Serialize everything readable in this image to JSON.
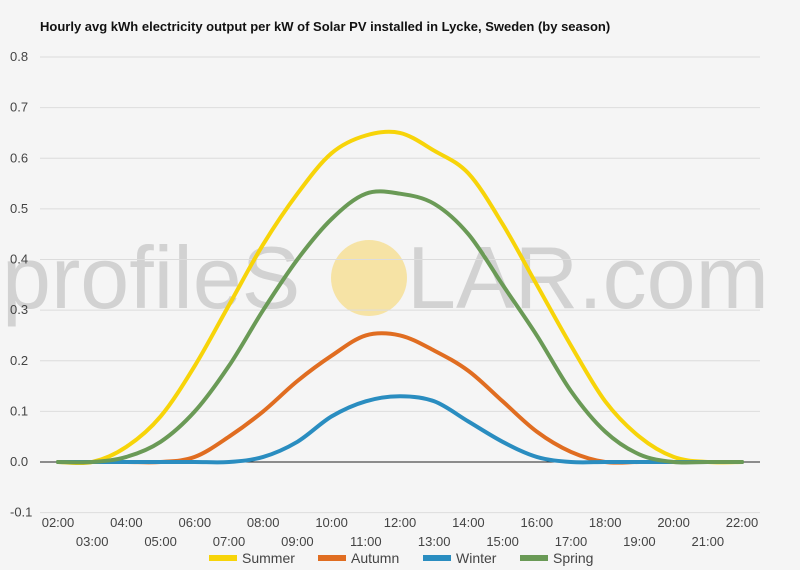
{
  "chart_data": {
    "type": "line",
    "title": "Hourly avg kWh electricity output per kW of Solar PV installed in Lycke, Sweden (by season)",
    "xlabel": "",
    "ylabel": "",
    "x": [
      "02:00",
      "03:00",
      "04:00",
      "05:00",
      "06:00",
      "07:00",
      "08:00",
      "09:00",
      "10:00",
      "11:00",
      "12:00",
      "13:00",
      "14:00",
      "15:00",
      "16:00",
      "17:00",
      "18:00",
      "19:00",
      "20:00",
      "21:00",
      "22:00"
    ],
    "ylim": [
      -0.1,
      0.8
    ],
    "yticks": [
      "0.8",
      "0.7",
      "0.6",
      "0.5",
      "0.4",
      "0.3",
      "0.2",
      "0.1",
      "0.0",
      "-0.1"
    ],
    "ytick_values": [
      0.8,
      0.7,
      0.6,
      0.5,
      0.4,
      0.3,
      0.2,
      0.1,
      0.0,
      -0.1
    ],
    "grid": true,
    "legend_position": "bottom",
    "series": [
      {
        "name": "Summer",
        "color": "#f7d409",
        "values": [
          0.0,
          0.0,
          0.03,
          0.09,
          0.19,
          0.31,
          0.43,
          0.53,
          0.61,
          0.645,
          0.65,
          0.615,
          0.57,
          0.47,
          0.35,
          0.23,
          0.12,
          0.05,
          0.01,
          0.0,
          0.0
        ]
      },
      {
        "name": "Autumn",
        "color": "#e06d21",
        "values": [
          0.0,
          0.0,
          0.0,
          0.0,
          0.01,
          0.05,
          0.1,
          0.16,
          0.21,
          0.25,
          0.25,
          0.22,
          0.18,
          0.12,
          0.06,
          0.02,
          0.0,
          0.0,
          0.0,
          0.0,
          0.0
        ]
      },
      {
        "name": "Winter",
        "color": "#2a8dc0",
        "values": [
          0.0,
          0.0,
          0.0,
          0.0,
          0.0,
          0.0,
          0.01,
          0.04,
          0.09,
          0.12,
          0.13,
          0.12,
          0.08,
          0.04,
          0.01,
          0.0,
          0.0,
          0.0,
          0.0,
          0.0,
          0.0
        ]
      },
      {
        "name": "Spring",
        "color": "#6a9a56",
        "values": [
          0.0,
          0.0,
          0.01,
          0.04,
          0.1,
          0.19,
          0.3,
          0.4,
          0.48,
          0.53,
          0.53,
          0.51,
          0.45,
          0.35,
          0.25,
          0.14,
          0.06,
          0.015,
          0.0,
          0.0,
          0.0
        ]
      }
    ]
  },
  "watermark": {
    "before": "profileS",
    "after": "LAR.com",
    "sun_color": "#f6dc8a"
  }
}
